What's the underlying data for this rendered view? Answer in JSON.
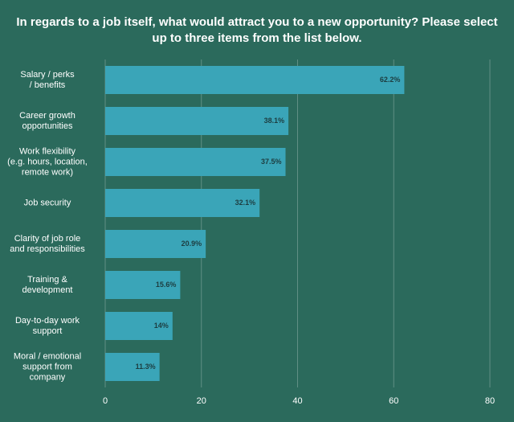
{
  "chart_data": {
    "type": "bar",
    "orientation": "horizontal",
    "title": "In regards to a job itself, what would attract you to a new opportunity? Please select up to three items from the list below.",
    "categories": [
      "Salary / perks\n/ benefits",
      "Career growth\nopportunities",
      "Work flexibility\n(e.g. hours, location,\nremote work)",
      "Job security",
      "Clarity of job role\nand responsibilities",
      "Training &\ndevelopment",
      "Day-to-day work\nsupport",
      "Moral / emotional\nsupport from\ncompany"
    ],
    "values": [
      62.2,
      38.1,
      37.5,
      32.1,
      20.9,
      15.6,
      14,
      11.3
    ],
    "value_labels": [
      "62.2%",
      "38.1%",
      "37.5%",
      "32.1%",
      "20.9%",
      "15.6%",
      "14%",
      "11.3%"
    ],
    "color": "#3aa5b8",
    "xlim": [
      0,
      80
    ],
    "xticks": [
      0,
      20,
      40,
      60,
      80
    ],
    "grid": true
  }
}
